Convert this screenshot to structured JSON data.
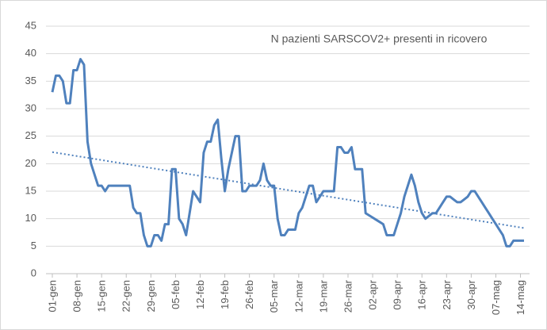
{
  "chart_data": {
    "type": "line",
    "title": "N pazienti SARSCOV2+ presenti in ricovero",
    "categories": [
      "01-gen",
      null,
      null,
      null,
      null,
      null,
      null,
      "08-gen",
      null,
      null,
      null,
      null,
      null,
      null,
      "15-gen",
      null,
      null,
      null,
      null,
      null,
      null,
      "22-gen",
      null,
      null,
      null,
      null,
      null,
      null,
      "29-gen",
      null,
      null,
      null,
      null,
      null,
      null,
      "05-feb",
      null,
      null,
      null,
      null,
      null,
      null,
      "12-feb",
      null,
      null,
      null,
      null,
      null,
      null,
      "19-feb",
      null,
      null,
      null,
      null,
      null,
      null,
      "26-feb",
      null,
      null,
      null,
      null,
      null,
      null,
      "05-mar",
      null,
      null,
      null,
      null,
      null,
      null,
      "12-mar",
      null,
      null,
      null,
      null,
      null,
      null,
      "19-mar",
      null,
      null,
      null,
      null,
      null,
      null,
      "26-mar",
      null,
      null,
      null,
      null,
      null,
      null,
      "02-apr",
      null,
      null,
      null,
      null,
      null,
      null,
      "09-apr",
      null,
      null,
      null,
      null,
      null,
      null,
      "16-apr",
      null,
      null,
      null,
      null,
      null,
      null,
      "23-apr",
      null,
      null,
      null,
      null,
      null,
      null,
      "30-apr",
      null,
      null,
      null,
      null,
      null,
      null,
      "07-mag",
      null,
      null,
      null,
      null,
      null,
      null,
      "14-mag",
      null
    ],
    "series": [
      {
        "color": "#4f81bd",
        "values": [
          33,
          36,
          36,
          35,
          31,
          31,
          37,
          37,
          39,
          38,
          24,
          20,
          18,
          16,
          16,
          15,
          16,
          16,
          16,
          16,
          16,
          16,
          16,
          12,
          11,
          11,
          7,
          5,
          5,
          7,
          7,
          6,
          9,
          9,
          19,
          19,
          10,
          9,
          7,
          11,
          15,
          14,
          13,
          22,
          24,
          24,
          27,
          28,
          21,
          15,
          19,
          22,
          25,
          25,
          15,
          15,
          16,
          16,
          16,
          17,
          20,
          17,
          16,
          16,
          10,
          7,
          7,
          8,
          8,
          8,
          11,
          12,
          14,
          16,
          16,
          13,
          14,
          15,
          15,
          15,
          15,
          23,
          23,
          22,
          22,
          23,
          19,
          19,
          19,
          11,
          10.6,
          10.2,
          9.8,
          9.4,
          9,
          7,
          7,
          7,
          9,
          11,
          14,
          16,
          18,
          16,
          13,
          11,
          10,
          10.5,
          11,
          11,
          12,
          13,
          14,
          14,
          13.5,
          13,
          13,
          13.5,
          14,
          15,
          15,
          14,
          13,
          12,
          11,
          10,
          9,
          8,
          7,
          5,
          5,
          6,
          6,
          6,
          6
        ]
      }
    ],
    "trendline": {
      "color": "#4f81bd",
      "values": [
        22.1,
        8.3
      ]
    },
    "ylim": [
      0,
      45
    ],
    "yticks": [
      0,
      5,
      10,
      15,
      20,
      25,
      30,
      35,
      40,
      45
    ],
    "grid": true
  }
}
